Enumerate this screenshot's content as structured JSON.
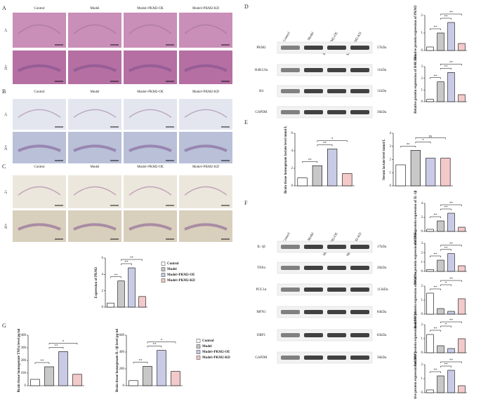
{
  "panels": {
    "A": {
      "label": "A",
      "columns": [
        "Control",
        "Model",
        "Model+PKM2-OE",
        "Model+PKM2-KD"
      ],
      "rows": [
        "2×",
        "20×"
      ]
    },
    "B": {
      "label": "B",
      "columns": [
        "Control",
        "Model",
        "Model+PKM2-OE",
        "Model+PKM2-KD"
      ],
      "rows": [
        "2×",
        "20×"
      ]
    },
    "C": {
      "label": "C",
      "columns": [
        "Control",
        "Model",
        "Model+PKM2-OE",
        "Model+PKM2-KD"
      ],
      "rows": [
        "2×",
        "20×"
      ]
    },
    "D": {
      "label": "D",
      "columns": [
        "Control",
        "Model",
        "Model+PKM2-OE",
        "Model+PKM2-KD"
      ],
      "rows": [
        {
          "name": "PKM2",
          "size": "57kDa"
        },
        {
          "name": "H4K12la",
          "size": "11kDa"
        },
        {
          "name": "H4",
          "size": "11kDa"
        },
        {
          "name": "GAPDH",
          "size": "36kDa"
        }
      ]
    },
    "E": {
      "label": "E"
    },
    "F": {
      "label": "F",
      "columns": [
        "Control",
        "Model",
        "Model+PKM2-OE",
        "Model+PKM2-KD"
      ],
      "rows": [
        {
          "name": "IL-1β",
          "size": "17kDa"
        },
        {
          "name": "TNFα",
          "size": "26kDa"
        },
        {
          "name": "PGC1α",
          "size": "113kDa"
        },
        {
          "name": "MFN1",
          "size": "84kDa"
        },
        {
          "name": "DRP1",
          "size": "83kDa"
        },
        {
          "name": "GAPDH",
          "size": "36kDa"
        }
      ]
    },
    "G": {
      "label": "G"
    }
  },
  "chart_data": [
    {
      "type": "bar",
      "ylabel": "Expression of PKM2",
      "categories": [
        "Control",
        "Model",
        "Model+PKM2-OE",
        "Model+PKM2-KD"
      ],
      "values": [
        0.5,
        3.2,
        4.8,
        1.3
      ],
      "colors": [
        "#ffffff",
        "#c8c8c8",
        "#c9cbe6",
        "#f3c9c9"
      ],
      "ylim": [
        0,
        6
      ],
      "yticks": [
        0,
        2,
        4,
        6
      ],
      "legend": "right",
      "annotations": [
        {
          "label": "**",
          "from": 0,
          "to": 1
        },
        {
          "label": "**",
          "from": 1,
          "to": 2
        },
        {
          "label": "**",
          "from": 1,
          "to": 3
        }
      ]
    },
    {
      "type": "bar",
      "ylabel": "Brain tissue homogenate TNFα level pg/ml",
      "values": [
        50,
        150,
        270,
        90
      ],
      "colors": [
        "#ffffff",
        "#c8c8c8",
        "#c9cbe6",
        "#f3c9c9"
      ],
      "ylim": [
        0,
        400
      ],
      "yticks": [
        0,
        100,
        200,
        300,
        400
      ],
      "annotations": [
        {
          "label": "**",
          "from": 0,
          "to": 1
        },
        {
          "label": "**",
          "from": 1,
          "to": 2
        },
        {
          "label": "*",
          "from": 1,
          "to": 3
        }
      ]
    },
    {
      "type": "bar",
      "ylabel": "Brain tissue homogenate IL-1β level pg/ml",
      "categories": [
        "Control",
        "Model",
        "Model+PKM2-OE",
        "Model+PKM2-KD"
      ],
      "values": [
        60,
        230,
        420,
        170
      ],
      "colors": [
        "#ffffff",
        "#c8c8c8",
        "#c9cbe6",
        "#f3c9c9"
      ],
      "ylim": [
        0,
        600
      ],
      "yticks": [
        0,
        200,
        400,
        600
      ],
      "legend": "right",
      "annotations": [
        {
          "label": "**",
          "from": 0,
          "to": 1
        },
        {
          "label": "**",
          "from": 1,
          "to": 2
        },
        {
          "label": "*",
          "from": 1,
          "to": 3
        }
      ]
    },
    {
      "type": "bar",
      "ylabel": "Brain tissue homogenate lactate level mmol/L",
      "values": [
        0.9,
        2.3,
        4.2,
        1.4
      ],
      "colors": [
        "#ffffff",
        "#c8c8c8",
        "#c9cbe6",
        "#f3c9c9"
      ],
      "ylim": [
        0,
        6
      ],
      "yticks": [
        0,
        2,
        4,
        6
      ],
      "annotations": [
        {
          "label": "**",
          "from": 0,
          "to": 1
        },
        {
          "label": "**",
          "from": 1,
          "to": 2
        },
        {
          "label": "*",
          "from": 1,
          "to": 3
        }
      ]
    },
    {
      "type": "bar",
      "ylabel": "Serum lactate level mmol/L",
      "values": [
        1.6,
        2.7,
        2.1,
        2.1
      ],
      "colors": [
        "#ffffff",
        "#c8c8c8",
        "#c9cbe6",
        "#f3c9c9"
      ],
      "ylim": [
        0,
        4
      ],
      "yticks": [
        0,
        1,
        2,
        3,
        4
      ],
      "annotations": [
        {
          "label": "**",
          "from": 0,
          "to": 1
        },
        {
          "label": "*",
          "from": 1,
          "to": 2
        },
        {
          "label": "ns",
          "from": 1,
          "to": 3
        }
      ]
    },
    {
      "type": "bar",
      "ylabel": "Relative protein expression of PKM2",
      "values": [
        0.2,
        1.0,
        1.6,
        0.4
      ],
      "colors": [
        "#ffffff",
        "#c8c8c8",
        "#c9cbe6",
        "#f3c9c9"
      ],
      "ylim": [
        0,
        2
      ],
      "yticks": [
        0,
        1,
        2
      ],
      "annotations": [
        {
          "label": "**",
          "from": 0,
          "to": 1
        },
        {
          "label": "**",
          "from": 1,
          "to": 2
        },
        {
          "label": "**",
          "from": 1,
          "to": 3
        }
      ]
    },
    {
      "type": "bar",
      "ylabel": "Relative protein expression of H4K12la",
      "values": [
        0.2,
        1.7,
        2.5,
        0.6
      ],
      "colors": [
        "#ffffff",
        "#c8c8c8",
        "#c9cbe6",
        "#f3c9c9"
      ],
      "ylim": [
        0,
        3
      ],
      "yticks": [
        0,
        1,
        2,
        3
      ],
      "annotations": [
        {
          "label": "**",
          "from": 0,
          "to": 1
        },
        {
          "label": "**",
          "from": 1,
          "to": 2
        },
        {
          "label": "**",
          "from": 1,
          "to": 3
        }
      ]
    },
    {
      "type": "bar",
      "ylabel": "Relative protein expression of IL-1β",
      "values": [
        0.3,
        1.5,
        2.6,
        0.6
      ],
      "colors": [
        "#ffffff",
        "#c8c8c8",
        "#c9cbe6",
        "#f3c9c9"
      ],
      "ylim": [
        0,
        4
      ],
      "yticks": [
        0,
        2,
        4
      ],
      "annotations": [
        {
          "label": "**",
          "from": 0,
          "to": 1
        },
        {
          "label": "**",
          "from": 1,
          "to": 2
        },
        {
          "label": "**",
          "from": 1,
          "to": 3
        }
      ]
    },
    {
      "type": "bar",
      "ylabel": "Relative protein expression of TNFα",
      "values": [
        0.2,
        1.2,
        1.9,
        0.6
      ],
      "colors": [
        "#ffffff",
        "#c8c8c8",
        "#c9cbe6",
        "#f3c9c9"
      ],
      "ylim": [
        0,
        3
      ],
      "yticks": [
        0,
        1,
        2,
        3
      ],
      "annotations": [
        {
          "label": "**",
          "from": 0,
          "to": 1
        },
        {
          "label": "**",
          "from": 1,
          "to": 2
        },
        {
          "label": "**",
          "from": 1,
          "to": 3
        }
      ]
    },
    {
      "type": "bar",
      "ylabel": "Relative protein expression of PGC1α",
      "values": [
        1.5,
        0.4,
        0.2,
        1.1
      ],
      "colors": [
        "#ffffff",
        "#c8c8c8",
        "#c9cbe6",
        "#f3c9c9"
      ],
      "ylim": [
        0,
        2
      ],
      "yticks": [
        0,
        1,
        2
      ],
      "annotations": [
        {
          "label": "**",
          "from": 0,
          "to": 1
        },
        {
          "label": "*",
          "from": 1,
          "to": 2
        },
        {
          "label": "**",
          "from": 1,
          "to": 3
        }
      ]
    },
    {
      "type": "bar",
      "ylabel": "Relative protein expression of MFN1",
      "values": [
        1.3,
        0.5,
        0.3,
        1.0
      ],
      "colors": [
        "#ffffff",
        "#c8c8c8",
        "#c9cbe6",
        "#f3c9c9"
      ],
      "ylim": [
        0,
        2
      ],
      "yticks": [
        0,
        1,
        2
      ],
      "annotations": [
        {
          "label": "**",
          "from": 0,
          "to": 1
        },
        {
          "label": "*",
          "from": 1,
          "to": 2
        },
        {
          "label": "**",
          "from": 1,
          "to": 3
        }
      ]
    },
    {
      "type": "bar",
      "ylabel": "Relative protein expression of DRP1",
      "values": [
        0.2,
        1.2,
        1.6,
        0.5
      ],
      "colors": [
        "#ffffff",
        "#c8c8c8",
        "#c9cbe6",
        "#f3c9c9"
      ],
      "ylim": [
        0,
        2
      ],
      "yticks": [
        0,
        1,
        2
      ],
      "annotations": [
        {
          "label": "**",
          "from": 0,
          "to": 1
        },
        {
          "label": "**",
          "from": 1,
          "to": 2
        },
        {
          "label": "**",
          "from": 1,
          "to": 3
        }
      ]
    }
  ]
}
